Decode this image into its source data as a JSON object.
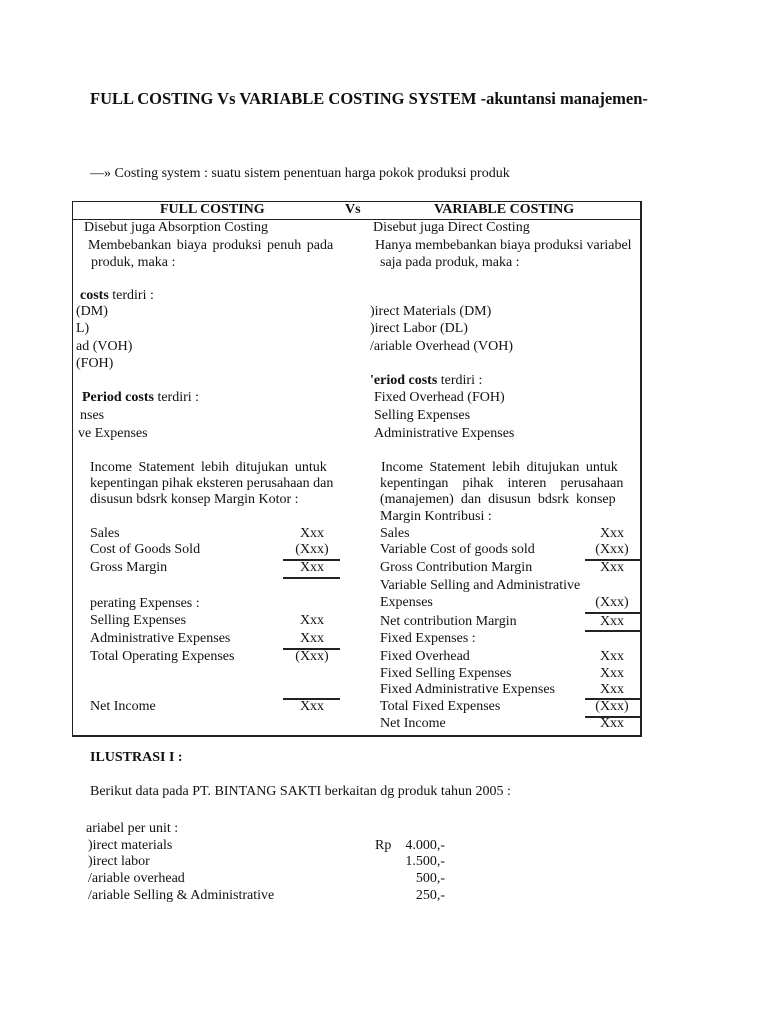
{
  "title": "FULL COSTING Vs VARIABLE COSTING SYSTEM -akuntansi manajemen-",
  "intro": {
    "arrow": "—»",
    "text": "Costing system : suatu sistem penentuan harga pokok produksi produk"
  },
  "table": {
    "header": {
      "left": "FULL COSTING",
      "vs": "Vs",
      "right": "VARIABLE COSTING"
    },
    "left": {
      "alias": "Disebut juga Absorption Costing",
      "desc1": "Membebankan  biaya  produksi  penuh  pada",
      "desc2": "produk, maka :",
      "product_costs_bold": "costs",
      "product_costs_rest": " terdiri :",
      "pc_items": [
        "(DM)",
        "L)",
        "ad (VOH)",
        "(FOH)"
      ],
      "period_bold": "Period costs",
      "period_rest": " terdiri :",
      "period_items": [
        "nses",
        "ve Expenses"
      ],
      "is_desc": [
        "Income  Statement  lebih  ditujukan  untuk",
        "kepentingan pihak eksteren perusahaan dan",
        "disusun bdsrk konsep Margin Kotor :"
      ],
      "rows": [
        {
          "label": "Sales",
          "amount": "Xxx"
        },
        {
          "label": "Cost of Goods Sold",
          "amount": "(Xxx)"
        },
        {
          "label": "Gross Margin",
          "amount": "Xxx"
        },
        {
          "label": "perating Expenses :",
          "amount": ""
        },
        {
          "label": "Selling Expenses",
          "amount": "Xxx"
        },
        {
          "label": "Administrative Expenses",
          "amount": "Xxx"
        },
        {
          "label": "Total Operating Expenses",
          "amount": "(Xxx)"
        },
        {
          "label": "Net Income",
          "amount": "Xxx"
        }
      ]
    },
    "right": {
      "alias": "Disebut juga Direct Costing",
      "desc1": "Hanya membebankan biaya produksi variabel",
      "desc2": "saja pada produk, maka :",
      "pc_items": [
        ")irect Materials (DM)",
        ")irect Labor (DL)",
        "/ariable Overhead (VOH)"
      ],
      "period_bold": "'eriod costs",
      "period_rest": " terdiri :",
      "period_items": [
        "Fixed Overhead (FOH)",
        "Selling Expenses",
        "Administrative Expenses"
      ],
      "is_desc": [
        "Income  Statement  lebih  ditujukan  untuk",
        "kepentingan    pihak    interen    perusahaan",
        "(manajemen)  dan  disusun  bdsrk  konsep",
        "Margin Kontribusi :"
      ],
      "rows": [
        {
          "label": "Sales",
          "amount": "Xxx"
        },
        {
          "label": "Variable Cost of goods sold",
          "amount": "(Xxx)"
        },
        {
          "label": "Gross Contribution Margin",
          "amount": "Xxx"
        },
        {
          "label": "Variable Selling and Administrative",
          "amount": ""
        },
        {
          "label": "Expenses",
          "amount": "(Xxx)"
        },
        {
          "label": "Net contribution Margin",
          "amount": "Xxx"
        },
        {
          "label": "Fixed Expenses :",
          "amount": ""
        },
        {
          "label": "Fixed Overhead",
          "amount": "Xxx"
        },
        {
          "label": "Fixed Selling Expenses",
          "amount": "Xxx"
        },
        {
          "label": "Fixed Administrative Expenses",
          "amount": "Xxx"
        },
        {
          "label": "Total Fixed Expenses",
          "amount": "(Xxx)"
        },
        {
          "label": "Net Income",
          "amount": "Xxx"
        }
      ]
    }
  },
  "illustration": {
    "heading": "ILUSTRASI I :",
    "intro": "Berikut data pada PT. BINTANG SAKTI berkaitan dg produk tahun 2005 :",
    "group": "ariabel per unit :",
    "currency": "Rp",
    "items": [
      {
        "label": ")irect materials",
        "value": "4.000,-"
      },
      {
        "label": ")irect labor",
        "value": "1.500,-"
      },
      {
        "label": "/ariable overhead",
        "value": "500,-"
      },
      {
        "label": "/ariable Selling & Administrative",
        "value": "250,-"
      }
    ]
  }
}
